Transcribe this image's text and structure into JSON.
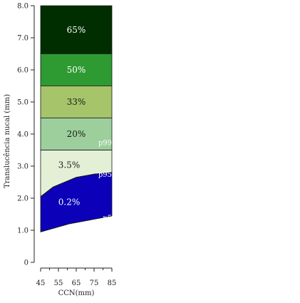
{
  "chart_data": {
    "type": "area",
    "xlabel": "CCN(mm)",
    "ylabel": "Translucência nucal (mm)",
    "x_ticks": [
      "45",
      "55",
      "65",
      "75",
      "85"
    ],
    "y_ticks": [
      "0",
      "1.0",
      "2.0",
      "3.0",
      "4.0",
      "5.0",
      "6.0",
      "7.0",
      "8.0"
    ],
    "xlim": [
      45,
      85
    ],
    "ylim": [
      0,
      8
    ],
    "grid": false,
    "bands": [
      {
        "label": "65%",
        "from": 6.5,
        "to": 8.0,
        "color": "#002e00",
        "text_color": "#ffffff"
      },
      {
        "label": "50%",
        "from": 5.5,
        "to": 6.5,
        "color": "#2e9a32",
        "text_color": "#ffffff"
      },
      {
        "label": "33%",
        "from": 4.5,
        "to": 5.5,
        "color": "#a6c46a",
        "text_color": "#1a1a1a"
      },
      {
        "label": "20%",
        "from": 3.5,
        "to": 4.5,
        "color": "#9ccf9c",
        "text_color": "#1a1a1a"
      },
      {
        "label": "3.5%",
        "from": "p95",
        "to": 3.5,
        "color": "#e3f0d6",
        "text_color": "#1a1a1a"
      },
      {
        "label": "0.2%",
        "from": "p5",
        "to": "p95",
        "color": "#0c00b8",
        "text_color": "#ffffff"
      }
    ],
    "series": [
      {
        "name": "p99",
        "x": [
          45,
          85
        ],
        "y": [
          3.5,
          3.5
        ]
      },
      {
        "name": "p95",
        "x": [
          45,
          52,
          65,
          75,
          85
        ],
        "y": [
          2.05,
          2.35,
          2.65,
          2.75,
          2.8
        ]
      },
      {
        "name": "p5",
        "x": [
          45,
          61,
          85
        ],
        "y": [
          0.95,
          1.2,
          1.45
        ]
      }
    ]
  }
}
